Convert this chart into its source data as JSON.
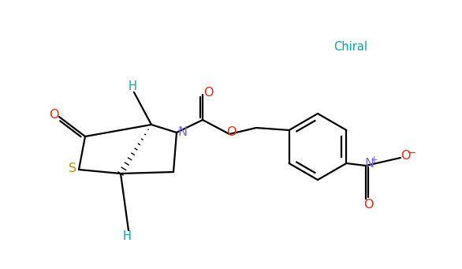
{
  "background": "#ffffff",
  "chiral_label": "Chiral",
  "chiral_color": "#00aaaa",
  "atom_colors": {
    "O": "#ff2200",
    "N": "#7766ff",
    "S": "#cc8800",
    "H": "#00aaaa",
    "C": "#000000"
  },
  "line_color": "#000000",
  "line_width": 1.6,
  "fontsize": 10.5
}
